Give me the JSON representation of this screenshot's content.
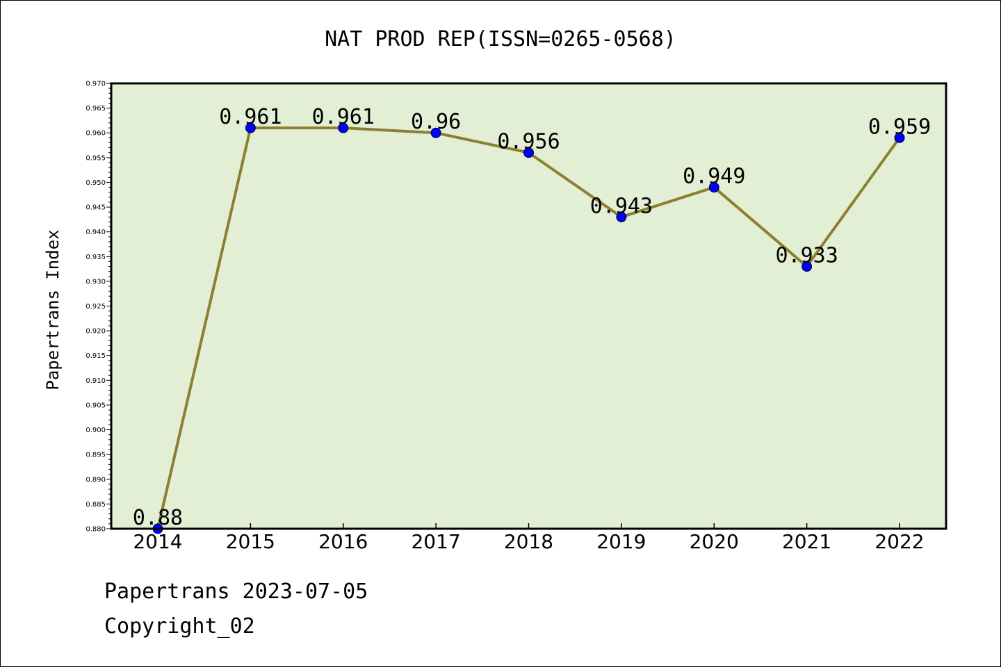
{
  "chart_data": {
    "type": "line",
    "title": "NAT PROD REP(ISSN=0265-0568)",
    "xlabel": "",
    "ylabel": "Papertrans Index",
    "categories": [
      "2014",
      "2015",
      "2016",
      "2017",
      "2018",
      "2019",
      "2020",
      "2021",
      "2022"
    ],
    "values": [
      0.88,
      0.961,
      0.961,
      0.96,
      0.956,
      0.943,
      0.949,
      0.933,
      0.959
    ],
    "data_labels": [
      "0.88",
      "0.961",
      "0.961",
      "0.96",
      "0.956",
      "0.943",
      "0.949",
      "0.933",
      "0.959"
    ],
    "ylim": [
      0.88,
      0.97
    ],
    "yticks": [
      "0.880",
      "0.885",
      "0.890",
      "0.895",
      "0.900",
      "0.905",
      "0.910",
      "0.915",
      "0.920",
      "0.925",
      "0.930",
      "0.935",
      "0.940",
      "0.945",
      "0.950",
      "0.955",
      "0.960",
      "0.965",
      "0.970"
    ],
    "grid": false,
    "colors": {
      "plot_background": "#e2efd5",
      "line": "#8c8030",
      "marker": "#0000ff"
    }
  },
  "footer": {
    "date_line": "Papertrans 2023-07-05",
    "copyright_line": "Copyright_02"
  }
}
